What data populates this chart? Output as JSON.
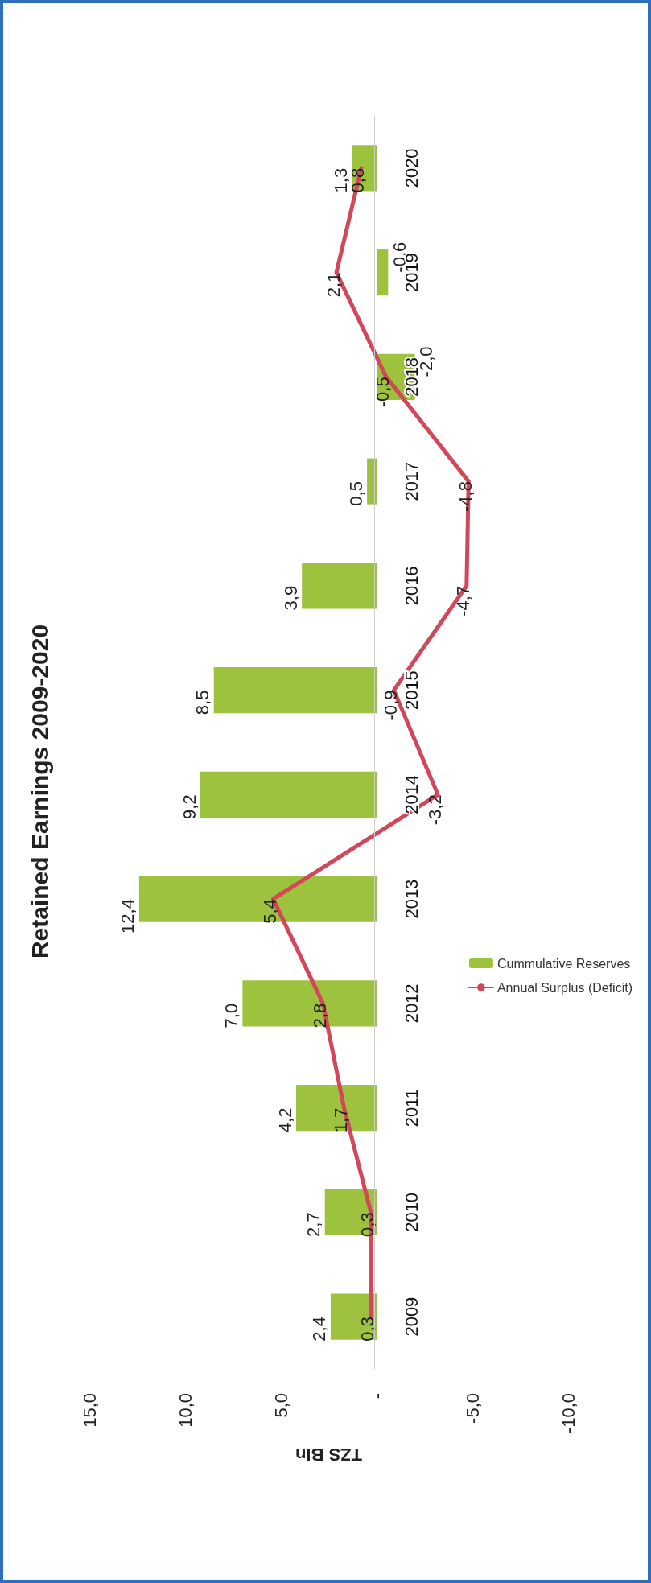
{
  "chart_data": {
    "type": "bar",
    "orientation": "horizontal",
    "title": "Retained Earnings 2009-2020",
    "xlabel": "TZS Bln",
    "categories": [
      "2020",
      "2019",
      "2018",
      "2017",
      "2016",
      "2015",
      "2014",
      "2013",
      "2012",
      "2011",
      "2010",
      "2009"
    ],
    "series": [
      {
        "name": "Cummulative Reserves",
        "color": "#9cc23e",
        "values": [
          1.3,
          -0.6,
          -2.0,
          0.5,
          3.9,
          8.5,
          9.2,
          12.4,
          7.0,
          4.2,
          2.7,
          2.4
        ],
        "value_labels": [
          "1,3",
          "-0,6",
          "-2,0",
          "0,5",
          "3,9",
          "8,5",
          "9,2",
          "12,4",
          "7,0",
          "4,2",
          "2,7",
          "2,4"
        ]
      },
      {
        "name": "Annual Surplus (Deficit)",
        "type": "line",
        "color": "#d2475a",
        "values": [
          0.8,
          2.1,
          -0.5,
          -4.8,
          -4.7,
          -0.9,
          -3.2,
          5.4,
          2.8,
          1.7,
          0.3,
          0.3
        ],
        "value_labels": [
          "0,8",
          "2,1",
          "-0,5",
          "-4,8",
          "-4,7",
          "-0,9",
          "-3,2",
          "5,4",
          "2,8",
          "1,7",
          "0,3",
          "0,3"
        ]
      }
    ],
    "xlim": [
      15,
      -10
    ],
    "xticks": [
      {
        "value": 15,
        "label": "15,0"
      },
      {
        "value": 10,
        "label": "10,0"
      },
      {
        "value": 5,
        "label": "5,0"
      },
      {
        "value": 0,
        "label": "-"
      },
      {
        "value": -5,
        "label": "-5,0"
      },
      {
        "value": -10,
        "label": "-10,0"
      }
    ],
    "grid": false,
    "legend": "right",
    "marker": "none",
    "line_style": "solid"
  }
}
